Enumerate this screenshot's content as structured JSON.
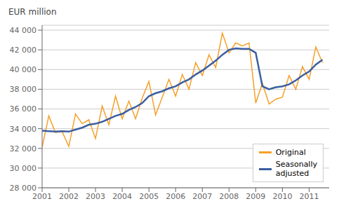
{
  "chart_data": {
    "type": "line",
    "y_label": "EUR million",
    "x": [
      2001.0,
      2001.25,
      2001.5,
      2001.75,
      2002.0,
      2002.25,
      2002.5,
      2002.75,
      2003.0,
      2003.25,
      2003.5,
      2003.75,
      2004.0,
      2004.25,
      2004.5,
      2004.75,
      2005.0,
      2005.25,
      2005.5,
      2005.75,
      2006.0,
      2006.25,
      2006.5,
      2006.75,
      2007.0,
      2007.25,
      2007.5,
      2007.75,
      2008.0,
      2008.25,
      2008.5,
      2008.75,
      2009.0,
      2009.25,
      2009.5,
      2009.75,
      2010.0,
      2010.25,
      2010.5,
      2010.75,
      2011.0,
      2011.25,
      2011.5
    ],
    "series": [
      {
        "name": "Original",
        "color": "#f5a02a",
        "values": [
          32100,
          35300,
          33600,
          33700,
          32200,
          35500,
          34500,
          34900,
          33000,
          36300,
          34400,
          37300,
          35000,
          36800,
          35000,
          37100,
          38800,
          35400,
          37200,
          39000,
          37300,
          39500,
          38000,
          40700,
          39400,
          41500,
          40200,
          43700,
          41700,
          42700,
          42400,
          42700,
          36600,
          38600,
          36500,
          37000,
          37200,
          39400,
          38000,
          40300,
          39000,
          42300,
          40700
        ]
      },
      {
        "name": "Seasonally\nadjusted",
        "color": "#3a5fa0",
        "values": [
          33800,
          33750,
          33700,
          33750,
          33700,
          33900,
          34100,
          34400,
          34500,
          34700,
          35000,
          35300,
          35500,
          35900,
          36200,
          36600,
          37300,
          37600,
          37800,
          38100,
          38300,
          38700,
          39000,
          39500,
          39900,
          40400,
          40900,
          41500,
          42000,
          42150,
          42100,
          42100,
          41700,
          38300,
          38000,
          38200,
          38300,
          38500,
          38900,
          39400,
          39800,
          40500,
          41000
        ]
      }
    ],
    "xlim": [
      2001.0,
      2011.75
    ],
    "xticks": [
      2001,
      2002,
      2003,
      2004,
      2005,
      2006,
      2007,
      2008,
      2009,
      2010,
      2011
    ],
    "ylim": [
      28000,
      44500
    ],
    "yticks": [
      {
        "value": 28000,
        "label": "28 000"
      },
      {
        "value": 30000,
        "label": "30 000"
      },
      {
        "value": 32000,
        "label": "32 000"
      },
      {
        "value": 34000,
        "label": "34 000"
      },
      {
        "value": 36000,
        "label": "36 000"
      },
      {
        "value": 38000,
        "label": "38 000"
      },
      {
        "value": 40000,
        "label": "40 000"
      },
      {
        "value": 42000,
        "label": "42 000"
      },
      {
        "value": 44000,
        "label": "44 000"
      }
    ],
    "grid": true,
    "legend": "lower right"
  }
}
